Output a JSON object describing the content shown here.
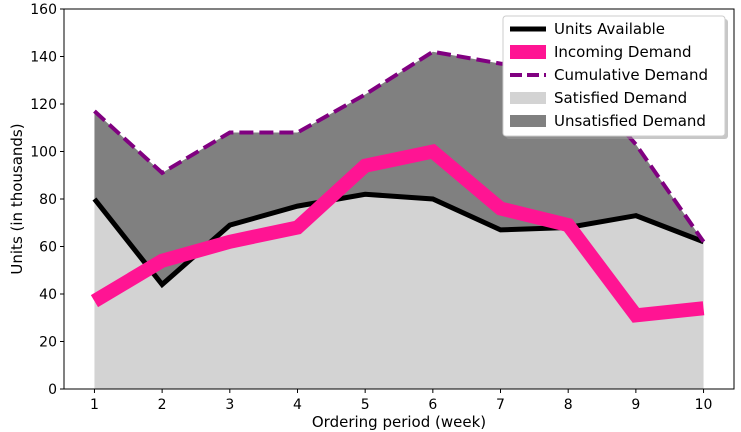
{
  "chart_data": {
    "type": "area",
    "x": [
      1,
      2,
      3,
      4,
      5,
      6,
      7,
      8,
      9,
      10
    ],
    "xlabel": "Ordering period (week)",
    "ylabel": "Units (in thousands)",
    "xlim": [
      0.55,
      10.45
    ],
    "ylim": [
      0,
      160
    ],
    "xticks": [
      1,
      2,
      3,
      4,
      5,
      6,
      7,
      8,
      9,
      10
    ],
    "yticks": [
      0,
      20,
      40,
      60,
      80,
      100,
      120,
      140,
      160
    ],
    "grid": false,
    "legend_position": "top-right",
    "series": [
      {
        "name": "Units Available",
        "style": "line",
        "color": "#000000",
        "values": [
          80,
          44,
          69,
          77,
          82,
          80,
          67,
          68,
          73,
          62
        ]
      },
      {
        "name": "Incoming Demand",
        "style": "line",
        "color": "#ff1493",
        "values": [
          37,
          54,
          62,
          68,
          94,
          100,
          76,
          69,
          31,
          34
        ]
      },
      {
        "name": "Cumulative Demand",
        "style": "dashed-line",
        "color": "#800080",
        "values": [
          117,
          91,
          108,
          108,
          124,
          142,
          137,
          135,
          103,
          62
        ]
      },
      {
        "name": "Satisfied Demand",
        "style": "area",
        "color": "#d3d3d3",
        "values": [
          80,
          44,
          69,
          77,
          82,
          80,
          67,
          68,
          73,
          62
        ]
      },
      {
        "name": "Unsatisfied Demand",
        "style": "area",
        "color": "#808080",
        "values": [
          37,
          47,
          39,
          31,
          42,
          62,
          70,
          67,
          30,
          0
        ]
      }
    ]
  }
}
